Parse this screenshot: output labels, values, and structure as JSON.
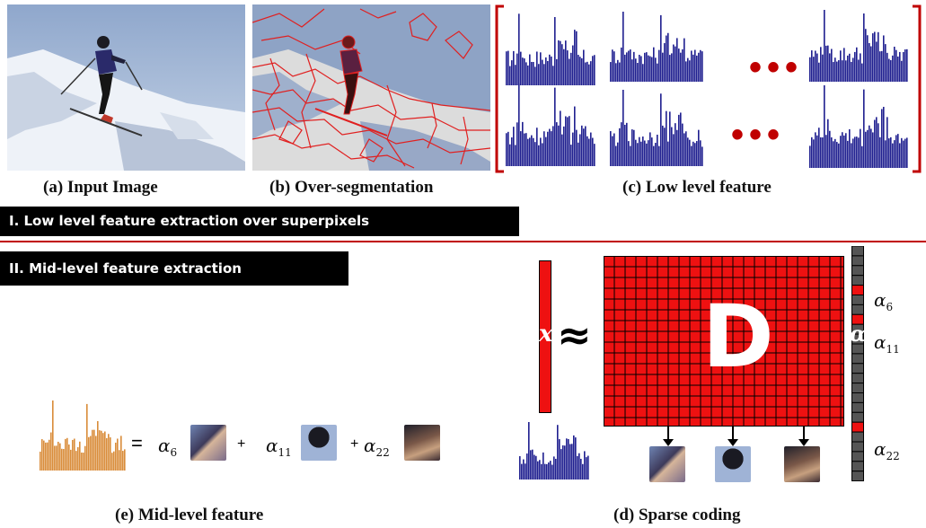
{
  "captions": {
    "input_image": "(a) Input  Image",
    "over_segmentation": "(b)  Over-segmentation",
    "low_level_feature": "(c) Low level feature",
    "mid_level_feature": "(e) Mid-level  feature",
    "sparse_coding": "(d)  Sparse  coding"
  },
  "banners": {
    "stage1": "I. Low level feature extraction over superpixels",
    "stage2": "II. Mid-level feature extraction"
  },
  "dictionary_label": "D",
  "symbols": {
    "approx": "≈",
    "x": "x",
    "alpha": "α",
    "equals": "=",
    "plus": "+"
  },
  "coefficients": {
    "a6": "α",
    "a6_sub": "6",
    "a11": "α",
    "a11_sub": "11",
    "a22": "α",
    "a22_sub": "22"
  },
  "colors": {
    "histogram": "#1f1f8f",
    "dictionary": "#ee1111",
    "segmentation": "#e02020",
    "mid_histogram": "#d98c3a",
    "bracket": "#c00000"
  }
}
